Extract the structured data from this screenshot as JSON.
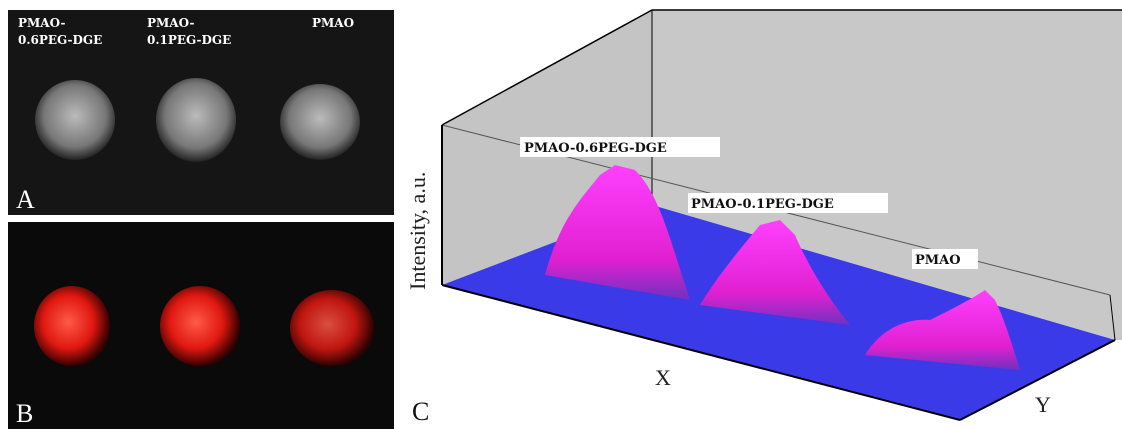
{
  "panels": {
    "a": {
      "letter": "A",
      "labels": [
        [
          "PMAO-",
          "0.6PEG-DGE"
        ],
        [
          "PMAO-",
          "0.1PEG-DGE"
        ],
        [
          "PMAO"
        ]
      ]
    },
    "b": {
      "letter": "B"
    },
    "c": {
      "letter": "C",
      "z_label": "Intensity, a.u.",
      "x_label": "X",
      "y_label": "Y",
      "peak_labels": [
        "PMAO-0.6PEG-DGE",
        "PMAO-0.1PEG-DGE",
        "PMAO"
      ]
    }
  }
}
